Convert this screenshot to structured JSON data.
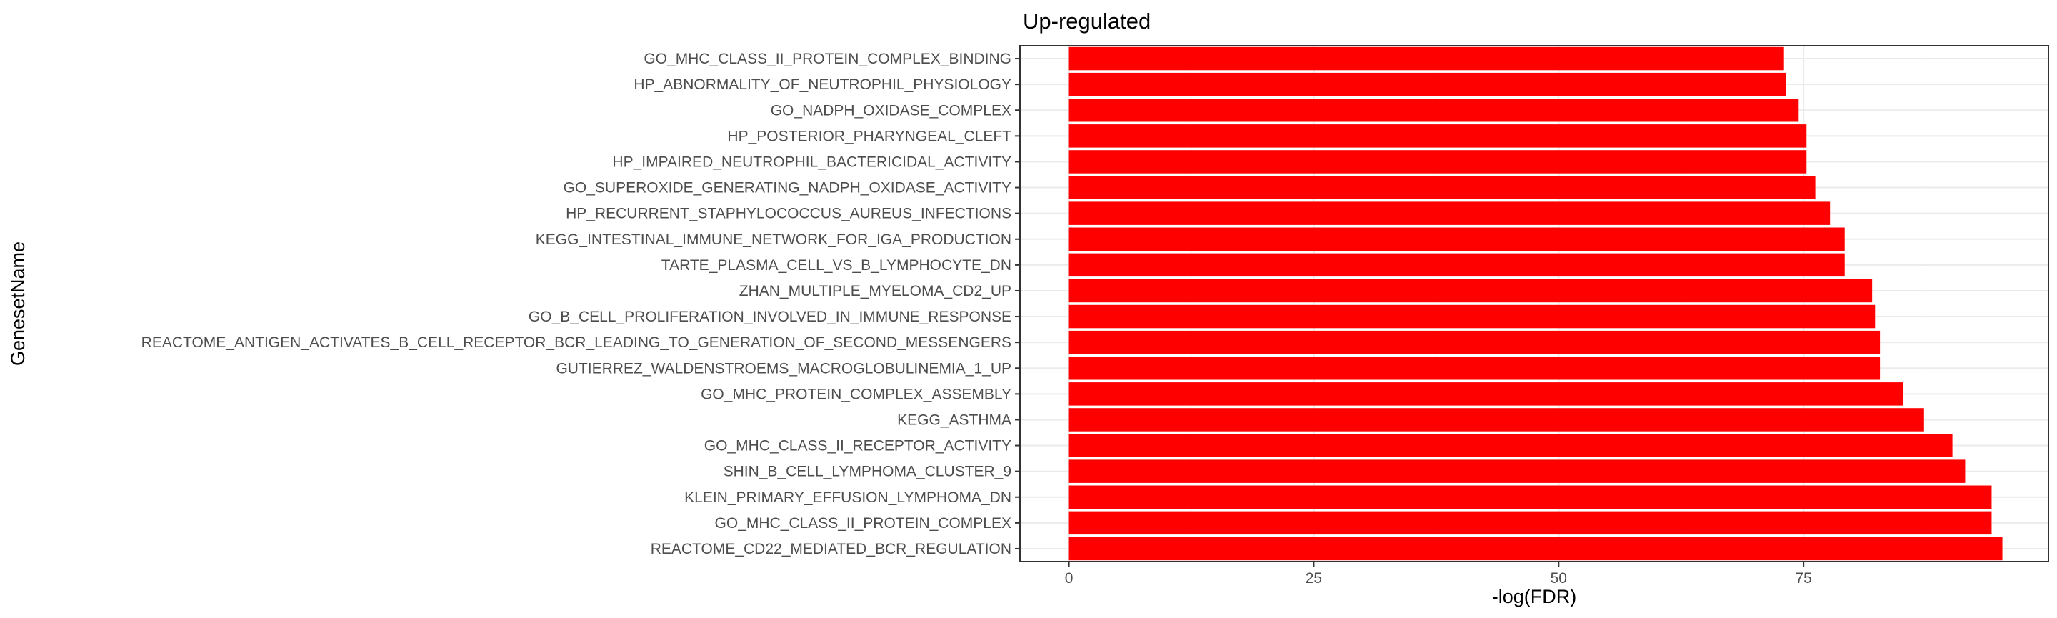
{
  "colors": {
    "bar": "#ff0000",
    "panel_border": "#333333",
    "grid_major": "#ebebeb",
    "grid_minor": "#f5f5f5",
    "tick_text": "#4d4d4d"
  },
  "chart_data": {
    "type": "bar",
    "orientation": "horizontal",
    "title": "Up-regulated",
    "xlabel": "-log(FDR)",
    "ylabel": "GenesetName",
    "xlim": [
      -5,
      100
    ],
    "xticks": [
      0,
      25,
      50,
      75
    ],
    "grid": true,
    "legend": "none",
    "categories": [
      "GO_MHC_CLASS_II_PROTEIN_COMPLEX_BINDING",
      "HP_ABNORMALITY_OF_NEUTROPHIL_PHYSIOLOGY",
      "GO_NADPH_OXIDASE_COMPLEX",
      "HP_POSTERIOR_PHARYNGEAL_CLEFT",
      "HP_IMPAIRED_NEUTROPHIL_BACTERICIDAL_ACTIVITY",
      "GO_SUPEROXIDE_GENERATING_NADPH_OXIDASE_ACTIVITY",
      "HP_RECURRENT_STAPHYLOCOCCUS_AUREUS_INFECTIONS",
      "KEGG_INTESTINAL_IMMUNE_NETWORK_FOR_IGA_PRODUCTION",
      "TARTE_PLASMA_CELL_VS_B_LYMPHOCYTE_DN",
      "ZHAN_MULTIPLE_MYELOMA_CD2_UP",
      "GO_B_CELL_PROLIFERATION_INVOLVED_IN_IMMUNE_RESPONSE",
      "REACTOME_ANTIGEN_ACTIVATES_B_CELL_RECEPTOR_BCR_LEADING_TO_GENERATION_OF_SECOND_MESSENGERS",
      "GUTIERREZ_WALDENSTROEMS_MACROGLOBULINEMIA_1_UP",
      "GO_MHC_PROTEIN_COMPLEX_ASSEMBLY",
      "KEGG_ASTHMA",
      "GO_MHC_CLASS_II_RECEPTOR_ACTIVITY",
      "SHIN_B_CELL_LYMPHOMA_CLUSTER_9",
      "KLEIN_PRIMARY_EFFUSION_LYMPHOMA_DN",
      "GO_MHC_CLASS_II_PROTEIN_COMPLEX",
      "REACTOME_CD22_MEDIATED_BCR_REGULATION"
    ],
    "values": [
      73.0,
      73.2,
      74.5,
      75.3,
      75.3,
      76.2,
      77.7,
      79.2,
      79.2,
      82.0,
      82.3,
      82.8,
      82.8,
      85.2,
      87.3,
      90.2,
      91.5,
      94.2,
      94.2,
      95.3
    ]
  }
}
